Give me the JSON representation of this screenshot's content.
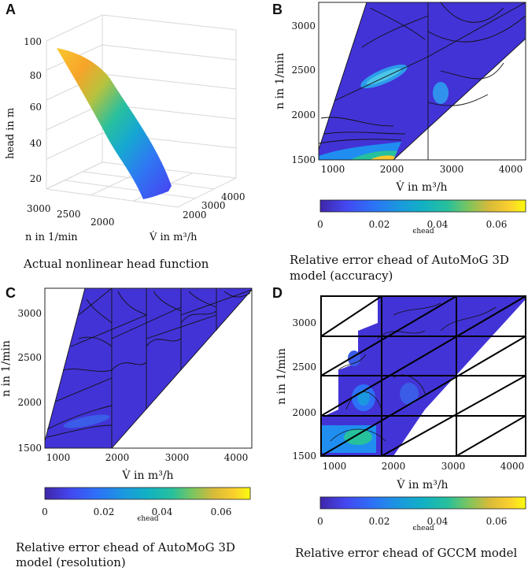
{
  "colors": {
    "parula_dark": "#3e26a8",
    "parula_blue": "#1f8ef0",
    "parula_teal": "#1bc0a2",
    "parula_yellow": "#f9fb0e"
  },
  "panels": [
    {
      "letter": "A",
      "chart_data": {
        "type": "surface3d",
        "title": "",
        "zlabel": "head in m",
        "xlabel": "n in 1/min",
        "ylabel": "V̇ in m³/h",
        "z_ticks": [
          "20",
          "40",
          "60",
          "80",
          "100"
        ],
        "x_ticks": [
          "3000",
          "2500",
          "2000"
        ],
        "y_ticks": [
          "2000",
          "3000",
          "4000"
        ],
        "zlim": [
          10,
          100
        ]
      },
      "caption_lines": [
        "Actual nonlinear head function"
      ]
    },
    {
      "letter": "B",
      "chart_data": {
        "type": "heatmap",
        "title": "",
        "xlabel": "V̇ in m³/h",
        "ylabel": "n in 1/min",
        "x_ticks": [
          "1000",
          "2000",
          "3000",
          "4000"
        ],
        "y_ticks": [
          "1500",
          "2000",
          "2500",
          "3000"
        ],
        "xlim": [
          750,
          4250
        ],
        "ylim": [
          1500,
          3300
        ],
        "colorbar": {
          "label": "ϵhead",
          "ticks": [
            "0",
            "0.02",
            "0.04",
            "0.06"
          ],
          "range": [
            0,
            0.07
          ]
        }
      },
      "caption_lines": [
        "Relative error ϵhead of AutoMoG 3D",
        "model (accuracy)"
      ]
    },
    {
      "letter": "C",
      "chart_data": {
        "type": "heatmap",
        "title": "",
        "xlabel": "V̇ in m³/h",
        "ylabel": "n in 1/min",
        "x_ticks": [
          "1000",
          "2000",
          "3000",
          "4000"
        ],
        "y_ticks": [
          "1500",
          "2000",
          "2500",
          "3000"
        ],
        "xlim": [
          750,
          4250
        ],
        "ylim": [
          1500,
          3300
        ],
        "colorbar": {
          "label": "ϵhead",
          "ticks": [
            "0",
            "0.02",
            "0.04",
            "0.06"
          ],
          "range": [
            0,
            0.07
          ]
        }
      },
      "caption_lines": [
        "Relative error ϵhead of AutoMoG 3D",
        "model (resolution)"
      ]
    },
    {
      "letter": "D",
      "chart_data": {
        "type": "heatmap",
        "title": "",
        "xlabel": "V̇ in m³/h",
        "ylabel": "n in 1/min",
        "x_ticks": [
          "1000",
          "2000",
          "3000",
          "4000"
        ],
        "y_ticks": [
          "1500",
          "2000",
          "2500",
          "3000"
        ],
        "xlim": [
          750,
          4250
        ],
        "ylim": [
          1500,
          3300
        ],
        "colorbar": {
          "label": "ϵhead",
          "ticks": [
            "0",
            "0.02",
            "0.04",
            "0.06"
          ],
          "range": [
            0,
            0.07
          ]
        }
      },
      "caption_lines": [
        "Relative error ϵhead of GCCM model"
      ]
    }
  ]
}
